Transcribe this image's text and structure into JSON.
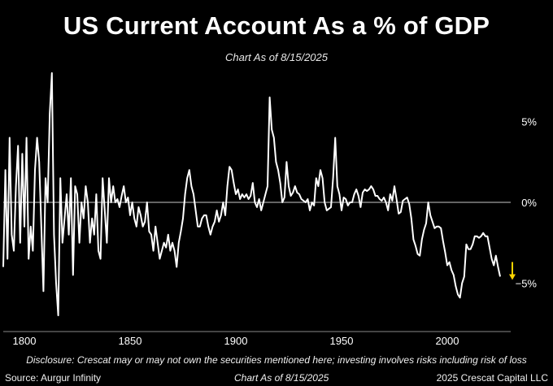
{
  "header": {
    "title": "US Current Account As a % of GDP",
    "subtitle": "Chart As of 8/15/2025"
  },
  "footer": {
    "disclosure": "Disclosure: Crescat may or may not own the securities mentioned here; investing involves risks including risk of loss",
    "source": "Source: Aurgur Infinity",
    "date": "Chart As of 8/15/2025",
    "copyright": "2025 Crescat Capital LLC"
  },
  "colors": {
    "background": "#000000",
    "line": "#ffffff",
    "arrow": "#ffd400",
    "zero_line": "#c8c8c8"
  },
  "chart_data": {
    "type": "line",
    "title": "US Current Account As a % of GDP",
    "subtitle": "Chart As of 8/15/2025",
    "xlabel": "",
    "ylabel": "",
    "xlim": [
      1790,
      2030
    ],
    "ylim": [
      -8,
      8.5
    ],
    "x_ticks": [
      1800,
      1850,
      1900,
      1950,
      2000
    ],
    "x_tick_labels": [
      "1800",
      "1850",
      "1900",
      "1950",
      "2000"
    ],
    "y_ticks": [
      5,
      0,
      -5
    ],
    "y_tick_labels": [
      "5%",
      "0%",
      "−5%"
    ],
    "zero_line": true,
    "grid": false,
    "annotation": {
      "type": "down-arrow",
      "x": 2025,
      "y": -4.2,
      "color": "#ffd400"
    },
    "series": [
      {
        "values": [
          [
            1790,
            -4.0
          ],
          [
            1791,
            2.0
          ],
          [
            1792,
            -3.5
          ],
          [
            1793,
            4.0
          ],
          [
            1794,
            -2.0
          ],
          [
            1795,
            -3.0
          ],
          [
            1796,
            1.0
          ],
          [
            1797,
            3.5
          ],
          [
            1798,
            -2.5
          ],
          [
            1799,
            3.0
          ],
          [
            1800,
            -1.5
          ],
          [
            1801,
            4.0
          ],
          [
            1802,
            -3.5
          ],
          [
            1803,
            -1.5
          ],
          [
            1804,
            -3.0
          ],
          [
            1805,
            2.0
          ],
          [
            1806,
            4.0
          ],
          [
            1807,
            2.5
          ],
          [
            1808,
            -1.5
          ],
          [
            1809,
            -5.5
          ],
          [
            1810,
            1.5
          ],
          [
            1811,
            0.0
          ],
          [
            1812,
            5.5
          ],
          [
            1813,
            8.0
          ],
          [
            1814,
            -2.0
          ],
          [
            1815,
            -5.0
          ],
          [
            1816,
            -7.0
          ],
          [
            1817,
            1.5
          ],
          [
            1818,
            -2.5
          ],
          [
            1819,
            -1.0
          ],
          [
            1820,
            0.5
          ],
          [
            1821,
            -2.0
          ],
          [
            1822,
            1.5
          ],
          [
            1823,
            -4.5
          ],
          [
            1824,
            1.0
          ],
          [
            1825,
            0.5
          ],
          [
            1826,
            -2.5
          ],
          [
            1827,
            0.0
          ],
          [
            1828,
            -1.0
          ],
          [
            1829,
            1.0
          ],
          [
            1830,
            0.0
          ],
          [
            1831,
            -2.5
          ],
          [
            1832,
            -1.0
          ],
          [
            1833,
            -2.0
          ],
          [
            1834,
            0.5
          ],
          [
            1835,
            -3.0
          ],
          [
            1836,
            -3.5
          ],
          [
            1837,
            1.5
          ],
          [
            1838,
            -0.5
          ],
          [
            1839,
            -2.5
          ],
          [
            1840,
            1.5
          ],
          [
            1841,
            0.0
          ],
          [
            1842,
            1.0
          ],
          [
            1843,
            0.0
          ],
          [
            1844,
            0.2
          ],
          [
            1845,
            -0.3
          ],
          [
            1846,
            0.4
          ],
          [
            1847,
            1.0
          ],
          [
            1848,
            0.0
          ],
          [
            1849,
            0.3
          ],
          [
            1850,
            -0.8
          ],
          [
            1851,
            0.0
          ],
          [
            1852,
            -1.0
          ],
          [
            1853,
            -1.5
          ],
          [
            1854,
            -0.3
          ],
          [
            1855,
            -0.8
          ],
          [
            1856,
            -1.5
          ],
          [
            1857,
            -1.2
          ],
          [
            1858,
            0.0
          ],
          [
            1859,
            -1.8
          ],
          [
            1860,
            -2.0
          ],
          [
            1861,
            -3.0
          ],
          [
            1862,
            -1.5
          ],
          [
            1863,
            -2.5
          ],
          [
            1864,
            -3.5
          ],
          [
            1865,
            -3.0
          ],
          [
            1866,
            -2.5
          ],
          [
            1867,
            -2.8
          ],
          [
            1868,
            -2.0
          ],
          [
            1869,
            -3.0
          ],
          [
            1870,
            -2.5
          ],
          [
            1871,
            -3.0
          ],
          [
            1872,
            -4.0
          ],
          [
            1873,
            -2.5
          ],
          [
            1874,
            -1.8
          ],
          [
            1875,
            -1.0
          ],
          [
            1876,
            0.5
          ],
          [
            1877,
            1.5
          ],
          [
            1878,
            2.0
          ],
          [
            1879,
            1.0
          ],
          [
            1880,
            0.5
          ],
          [
            1881,
            -0.5
          ],
          [
            1882,
            -1.5
          ],
          [
            1883,
            -1.5
          ],
          [
            1884,
            -1.0
          ],
          [
            1885,
            -0.8
          ],
          [
            1886,
            -0.8
          ],
          [
            1887,
            -1.5
          ],
          [
            1888,
            -2.0
          ],
          [
            1889,
            -1.5
          ],
          [
            1890,
            -1.2
          ],
          [
            1891,
            -0.5
          ],
          [
            1892,
            -1.2
          ],
          [
            1893,
            -0.8
          ],
          [
            1894,
            0.0
          ],
          [
            1895,
            -0.8
          ],
          [
            1896,
            1.0
          ],
          [
            1897,
            2.2
          ],
          [
            1898,
            2.0
          ],
          [
            1899,
            1.2
          ],
          [
            1900,
            0.5
          ],
          [
            1901,
            0.8
          ],
          [
            1902,
            0.2
          ],
          [
            1903,
            0.5
          ],
          [
            1904,
            0.3
          ],
          [
            1905,
            0.5
          ],
          [
            1906,
            0.2
          ],
          [
            1907,
            0.4
          ],
          [
            1908,
            1.2
          ],
          [
            1909,
            0.0
          ],
          [
            1910,
            -0.3
          ],
          [
            1911,
            0.2
          ],
          [
            1912,
            -0.5
          ],
          [
            1913,
            0.0
          ],
          [
            1914,
            0.5
          ],
          [
            1915,
            1.0
          ],
          [
            1916,
            6.5
          ],
          [
            1917,
            4.5
          ],
          [
            1918,
            4.0
          ],
          [
            1919,
            2.5
          ],
          [
            1920,
            2.0
          ],
          [
            1921,
            1.2
          ],
          [
            1922,
            0.0
          ],
          [
            1923,
            0.3
          ],
          [
            1924,
            2.5
          ],
          [
            1925,
            1.0
          ],
          [
            1926,
            0.4
          ],
          [
            1927,
            0.6
          ],
          [
            1928,
            1.0
          ],
          [
            1929,
            0.6
          ],
          [
            1930,
            0.5
          ],
          [
            1931,
            0.2
          ],
          [
            1932,
            0.1
          ],
          [
            1933,
            0.0
          ],
          [
            1934,
            0.2
          ],
          [
            1935,
            -0.5
          ],
          [
            1936,
            0.0
          ],
          [
            1937,
            -0.2
          ],
          [
            1938,
            1.5
          ],
          [
            1939,
            1.0
          ],
          [
            1940,
            2.0
          ],
          [
            1941,
            1.5
          ],
          [
            1942,
            0.0
          ],
          [
            1943,
            -0.5
          ],
          [
            1944,
            -0.4
          ],
          [
            1945,
            -0.3
          ],
          [
            1946,
            1.5
          ],
          [
            1947,
            4.0
          ],
          [
            1948,
            1.0
          ],
          [
            1949,
            0.5
          ],
          [
            1950,
            -0.5
          ],
          [
            1951,
            0.3
          ],
          [
            1952,
            0.2
          ],
          [
            1953,
            -0.2
          ],
          [
            1954,
            0.0
          ],
          [
            1955,
            0.0
          ],
          [
            1956,
            0.5
          ],
          [
            1957,
            0.8
          ],
          [
            1958,
            0.4
          ],
          [
            1959,
            -0.3
          ],
          [
            1960,
            0.6
          ],
          [
            1961,
            0.8
          ],
          [
            1962,
            0.7
          ],
          [
            1963,
            0.8
          ],
          [
            1964,
            1.0
          ],
          [
            1965,
            0.8
          ],
          [
            1966,
            0.4
          ],
          [
            1967,
            0.4
          ],
          [
            1968,
            0.2
          ],
          [
            1969,
            0.1
          ],
          [
            1970,
            0.3
          ],
          [
            1971,
            0.0
          ],
          [
            1972,
            -0.5
          ],
          [
            1973,
            0.5
          ],
          [
            1974,
            0.1
          ],
          [
            1975,
            1.0
          ],
          [
            1976,
            0.2
          ],
          [
            1977,
            -0.7
          ],
          [
            1978,
            -0.6
          ],
          [
            1979,
            0.1
          ],
          [
            1980,
            0.2
          ],
          [
            1981,
            0.3
          ],
          [
            1982,
            -0.1
          ],
          [
            1983,
            -1.0
          ],
          [
            1984,
            -2.3
          ],
          [
            1985,
            -2.7
          ],
          [
            1986,
            -3.2
          ],
          [
            1987,
            -3.3
          ],
          [
            1988,
            -2.3
          ],
          [
            1989,
            -1.7
          ],
          [
            1990,
            -1.3
          ],
          [
            1991,
            0.0
          ],
          [
            1992,
            -0.8
          ],
          [
            1993,
            -1.2
          ],
          [
            1994,
            -1.6
          ],
          [
            1995,
            -1.5
          ],
          [
            1996,
            -1.5
          ],
          [
            1997,
            -1.6
          ],
          [
            1998,
            -2.4
          ],
          [
            1999,
            -3.1
          ],
          [
            2000,
            -3.9
          ],
          [
            2001,
            -3.7
          ],
          [
            2002,
            -4.2
          ],
          [
            2003,
            -4.5
          ],
          [
            2004,
            -5.2
          ],
          [
            2005,
            -5.7
          ],
          [
            2006,
            -5.9
          ],
          [
            2007,
            -5.0
          ],
          [
            2008,
            -4.6
          ],
          [
            2009,
            -2.6
          ],
          [
            2010,
            -2.9
          ],
          [
            2011,
            -2.9
          ],
          [
            2012,
            -2.6
          ],
          [
            2013,
            -2.1
          ],
          [
            2014,
            -2.1
          ],
          [
            2015,
            -2.2
          ],
          [
            2016,
            -2.1
          ],
          [
            2017,
            -1.9
          ],
          [
            2018,
            -2.1
          ],
          [
            2019,
            -2.1
          ],
          [
            2020,
            -2.8
          ],
          [
            2021,
            -3.5
          ],
          [
            2022,
            -3.9
          ],
          [
            2023,
            -3.3
          ],
          [
            2024,
            -4.0
          ],
          [
            2025,
            -4.6
          ]
        ]
      }
    ]
  }
}
